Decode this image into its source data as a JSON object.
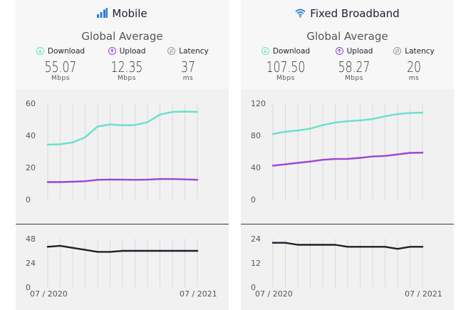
{
  "panels": [
    {
      "title": "Mobile",
      "icon": "signal-bars-icon",
      "subtitle": "Global Average",
      "metrics": [
        {
          "label": "Download",
          "value": "55.07",
          "unit": "Mbps",
          "icon": "download-arrow-icon",
          "color": "#69e0cc"
        },
        {
          "label": "Upload",
          "value": "12.35",
          "unit": "Mbps",
          "icon": "upload-arrow-icon",
          "color": "#9b45d6"
        },
        {
          "label": "Latency",
          "value": "37",
          "unit": "ms",
          "icon": "latency-swap-icon",
          "color": "#9a9a9a"
        }
      ]
    },
    {
      "title": "Fixed Broadband",
      "icon": "wifi-icon",
      "subtitle": "Global Average",
      "metrics": [
        {
          "label": "Download",
          "value": "107.50",
          "unit": "Mbps",
          "icon": "download-arrow-icon",
          "color": "#69e0cc"
        },
        {
          "label": "Upload",
          "value": "58.27",
          "unit": "Mbps",
          "icon": "upload-arrow-icon",
          "color": "#9b45d6"
        },
        {
          "label": "Latency",
          "value": "20",
          "unit": "ms",
          "icon": "latency-swap-icon",
          "color": "#9a9a9a"
        }
      ]
    }
  ],
  "chart_data": [
    {
      "type": "line",
      "panel": "Mobile",
      "chart": "speed",
      "x": [
        "07 / 2020",
        "08 / 2020",
        "09 / 2020",
        "10 / 2020",
        "11 / 2020",
        "12 / 2020",
        "01 / 2021",
        "02 / 2021",
        "03 / 2021",
        "04 / 2021",
        "05 / 2021",
        "06 / 2021",
        "07 / 2021"
      ],
      "series": [
        {
          "name": "Download",
          "values": [
            34.2,
            34.5,
            35.6,
            38.8,
            45.6,
            46.8,
            46.3,
            46.5,
            48.2,
            53.0,
            54.6,
            54.9,
            54.6
          ],
          "color": "#69e0cc"
        },
        {
          "name": "Upload",
          "values": [
            10.9,
            10.9,
            11.1,
            11.4,
            12.3,
            12.5,
            12.4,
            12.3,
            12.4,
            12.8,
            12.8,
            12.6,
            12.3
          ],
          "color": "#9b45d6"
        }
      ],
      "ylim": [
        0,
        60
      ],
      "yticks": [
        0,
        20,
        40,
        60
      ],
      "grid": "vertical"
    },
    {
      "type": "line",
      "panel": "Mobile",
      "chart": "latency",
      "x": [
        "07 / 2020",
        "08 / 2020",
        "09 / 2020",
        "10 / 2020",
        "11 / 2020",
        "12 / 2020",
        "01 / 2021",
        "02 / 2021",
        "03 / 2021",
        "04 / 2021",
        "05 / 2021",
        "06 / 2021",
        "07 / 2021"
      ],
      "series": [
        {
          "name": "Latency",
          "values": [
            40,
            41,
            39,
            37,
            35,
            35,
            36,
            36,
            36,
            36,
            36,
            36,
            36
          ],
          "color": "#1f1f2e"
        }
      ],
      "ylim": [
        0,
        48
      ],
      "yticks": [
        0,
        24,
        48
      ],
      "xticks": [
        "07 / 2020",
        "07 / 2021"
      ],
      "grid": "vertical"
    },
    {
      "type": "line",
      "panel": "Fixed Broadband",
      "chart": "speed",
      "x": [
        "07 / 2020",
        "08 / 2020",
        "09 / 2020",
        "10 / 2020",
        "11 / 2020",
        "12 / 2020",
        "01 / 2021",
        "02 / 2021",
        "03 / 2021",
        "04 / 2021",
        "05 / 2021",
        "06 / 2021",
        "07 / 2021"
      ],
      "series": [
        {
          "name": "Download",
          "values": [
            81.6,
            84.6,
            86.1,
            88.4,
            92.9,
            96.1,
            97.7,
            98.7,
            100.5,
            103.8,
            106.7,
            107.9,
            108.4
          ],
          "color": "#69e0cc"
        },
        {
          "name": "Upload",
          "values": [
            42.3,
            43.9,
            45.8,
            47.4,
            49.6,
            50.6,
            50.8,
            52.0,
            53.7,
            54.4,
            56.3,
            58.2,
            58.5
          ],
          "color": "#9b45d6"
        }
      ],
      "ylim": [
        0,
        120
      ],
      "yticks": [
        0,
        40,
        80,
        120
      ],
      "grid": "vertical"
    },
    {
      "type": "line",
      "panel": "Fixed Broadband",
      "chart": "latency",
      "x": [
        "07 / 2020",
        "08 / 2020",
        "09 / 2020",
        "10 / 2020",
        "11 / 2020",
        "12 / 2020",
        "01 / 2021",
        "02 / 2021",
        "03 / 2021",
        "04 / 2021",
        "05 / 2021",
        "06 / 2021",
        "07 / 2021"
      ],
      "series": [
        {
          "name": "Latency",
          "values": [
            22,
            22,
            21,
            21,
            21,
            21,
            20,
            20,
            20,
            20,
            19,
            20,
            20
          ],
          "color": "#1f1f2e"
        }
      ],
      "ylim": [
        0,
        24
      ],
      "yticks": [
        0,
        12,
        24
      ],
      "xticks": [
        "07 / 2020",
        "07 / 2021"
      ],
      "grid": "vertical"
    }
  ]
}
